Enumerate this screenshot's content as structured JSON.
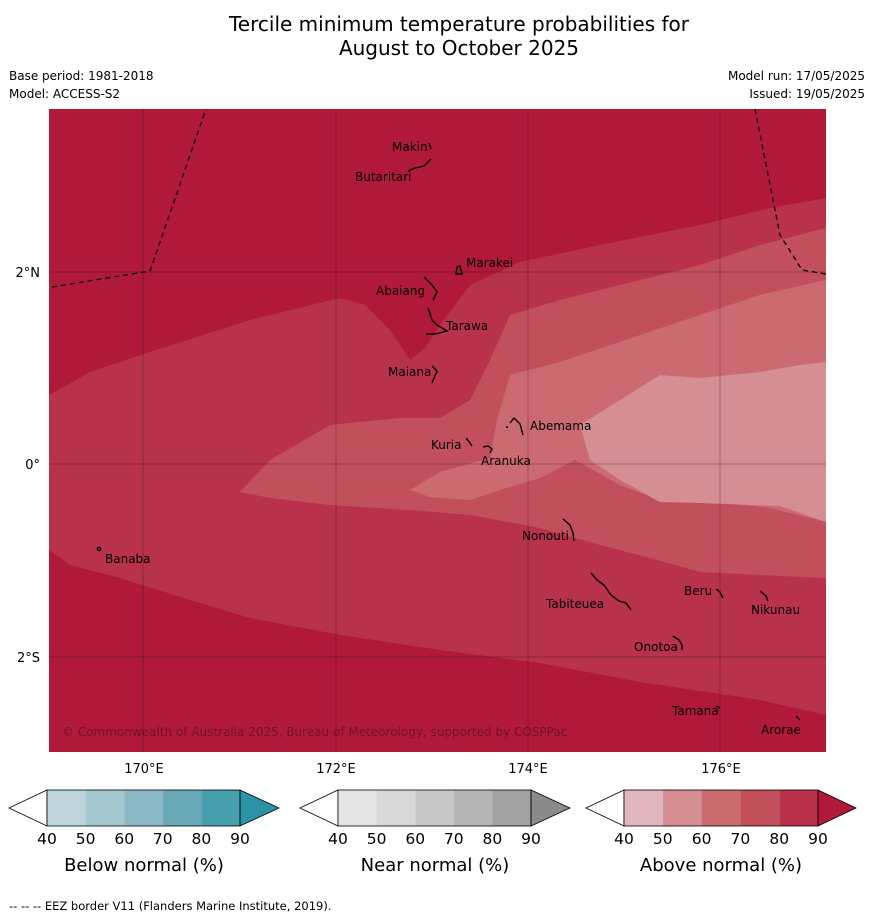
{
  "title_line1": "Tercile minimum temperature probabilities for",
  "title_line2": "August to October 2025",
  "meta": {
    "base_period": "Base period: 1981-2018",
    "model": "Model: ACCESS-S2",
    "model_run": "Model run: 17/05/2025",
    "issued": "Issued: 19/05/2025"
  },
  "map": {
    "lat_labels": [
      "2°N",
      "0°",
      "2°S"
    ],
    "lon_labels": [
      "170°E",
      "172°E",
      "174°E",
      "176°E"
    ],
    "copyright": "© Commonwealth of Australia 2025, Bureau of Meteorology, supported by COSPPac",
    "islands": [
      "Makin",
      "Butaritari",
      "Marakei",
      "Abaiang",
      "Tarawa",
      "Maiana",
      "Abemama",
      "Kuria",
      "Aranuka",
      "Nonouti",
      "Banaba",
      "Beru",
      "Nikunau",
      "Tabiteuea",
      "Onotoa",
      "Tamana",
      "Arorae"
    ],
    "colors": {
      "above_40_50": "#e0b6bc",
      "above_50_60": "#d48e94",
      "above_60_70": "#cc6a72",
      "above_70_80": "#c2505c",
      "above_80_90": "#b7324a",
      "above_90": "#b0193a"
    }
  },
  "colorbars": [
    {
      "title": "Below normal (%)",
      "ticks": [
        "40",
        "50",
        "60",
        "70",
        "80",
        "90"
      ],
      "colors": [
        "#ffffff",
        "#bed4db",
        "#a5c8d0",
        "#8bb9c5",
        "#6aa9b7",
        "#479fae",
        "#2c93a6"
      ]
    },
    {
      "title": "Near normal (%)",
      "ticks": [
        "40",
        "50",
        "60",
        "70",
        "80",
        "90"
      ],
      "colors": [
        "#ffffff",
        "#e5e5e5",
        "#d8d8d8",
        "#c8c8c8",
        "#b5b5b5",
        "#a1a1a1",
        "#8a8a8a"
      ]
    },
    {
      "title": "Above normal (%)",
      "ticks": [
        "40",
        "50",
        "60",
        "70",
        "80",
        "90"
      ],
      "colors": [
        "#ffffff",
        "#e0b6bc",
        "#d48e94",
        "#cc6a72",
        "#c2505c",
        "#b7324a",
        "#b0193a"
      ]
    }
  ],
  "footer": "--  --  -- EEZ border V11 (Flanders Marine Institute, 2019)."
}
